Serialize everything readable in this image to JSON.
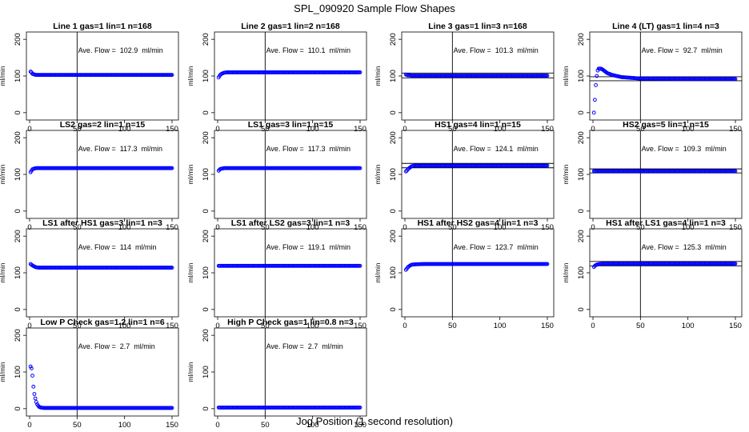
{
  "figure": {
    "title": "SPL_090920  Sample Flow Shapes",
    "xlabel": "Jog Position (1 second resolution)"
  },
  "colors": {
    "points": "#0000ff",
    "axes": "#000000",
    "background": "#ffffff"
  },
  "chart_data": [
    {
      "type": "scatter",
      "title": "Line 1 gas=1 lin=1 n=168",
      "ylabel": "ml/min",
      "annotation": "Ave. Flow =  102.9  ml/min",
      "xlim": [
        0,
        150
      ],
      "ylim": [
        -20,
        220
      ],
      "xticks": [
        0,
        50,
        100,
        150
      ],
      "yticks": [
        0,
        100,
        200
      ],
      "vline": 50,
      "hlines": [],
      "series": [
        {
          "x": [
            1,
            2,
            3,
            5,
            7,
            10,
            20,
            50,
            100,
            150
          ],
          "y": [
            112,
            110,
            106,
            104,
            103,
            103,
            103,
            103,
            103,
            103
          ]
        }
      ]
    },
    {
      "type": "scatter",
      "title": "Line 2 gas=1 lin=2 n=168",
      "ylabel": "ml/min",
      "annotation": "Ave. Flow =  110.1  ml/min",
      "xlim": [
        0,
        150
      ],
      "ylim": [
        -20,
        220
      ],
      "xticks": [
        0,
        50,
        100,
        150
      ],
      "yticks": [
        0,
        100,
        200
      ],
      "vline": 50,
      "hlines": [],
      "series": [
        {
          "x": [
            1,
            2,
            3,
            5,
            7,
            10,
            20,
            50,
            100,
            150
          ],
          "y": [
            96,
            100,
            104,
            107,
            109,
            110,
            110,
            110,
            110,
            110
          ]
        }
      ]
    },
    {
      "type": "scatter",
      "title": "Line 3 gas=1 lin=3 n=168",
      "ylabel": "ml/min",
      "annotation": "Ave. Flow =  101.3  ml/min",
      "xlim": [
        0,
        150
      ],
      "ylim": [
        -20,
        220
      ],
      "xticks": [
        0,
        50,
        100,
        150
      ],
      "yticks": [
        0,
        100,
        200
      ],
      "vline": 50,
      "hlines": [
        95,
        108
      ],
      "series": [
        {
          "x": [
            1,
            2,
            3,
            5,
            7,
            10,
            20,
            50,
            100,
            150
          ],
          "y": [
            104,
            103,
            102,
            102,
            101,
            101,
            101,
            101,
            101,
            101
          ]
        }
      ]
    },
    {
      "type": "scatter",
      "title": "Line 4 (LT) gas=1 lin=4 n=3",
      "ylabel": "ml/min",
      "annotation": "Ave. Flow =  92.7  ml/min",
      "xlim": [
        0,
        150
      ],
      "ylim": [
        -20,
        220
      ],
      "xticks": [
        0,
        50,
        100,
        150
      ],
      "yticks": [
        0,
        100,
        200
      ],
      "vline": 50,
      "hlines": [
        87,
        98
      ],
      "series": [
        {
          "x": [
            1,
            2,
            3,
            4,
            5,
            6,
            8,
            10,
            12,
            15,
            20,
            25,
            30,
            40,
            50,
            100,
            150
          ],
          "y": [
            0,
            35,
            75,
            100,
            115,
            120,
            120,
            118,
            114,
            108,
            103,
            100,
            97,
            95,
            93,
            92,
            92
          ]
        }
      ]
    },
    {
      "type": "scatter",
      "title": "LS2 gas=2 lin=1 n=15",
      "ylabel": "ml/min",
      "annotation": "Ave. Flow =  117.3  ml/min",
      "xlim": [
        0,
        150
      ],
      "ylim": [
        -20,
        220
      ],
      "xticks": [
        0,
        50,
        100,
        150
      ],
      "yticks": [
        0,
        100,
        200
      ],
      "vline": 50,
      "hlines": [],
      "series": [
        {
          "x": [
            1,
            2,
            3,
            5,
            7,
            10,
            20,
            50,
            100,
            150
          ],
          "y": [
            106,
            110,
            114,
            116,
            117,
            117,
            117,
            117,
            117,
            117
          ]
        }
      ]
    },
    {
      "type": "scatter",
      "title": "LS1 gas=3 lin=1 n=15",
      "ylabel": "ml/min",
      "annotation": "Ave. Flow =  117.3  ml/min",
      "xlim": [
        0,
        150
      ],
      "ylim": [
        -20,
        220
      ],
      "xticks": [
        0,
        50,
        100,
        150
      ],
      "yticks": [
        0,
        100,
        200
      ],
      "vline": 50,
      "hlines": [],
      "series": [
        {
          "x": [
            1,
            2,
            3,
            5,
            7,
            10,
            20,
            50,
            100,
            150
          ],
          "y": [
            110,
            113,
            115,
            116,
            117,
            117,
            117,
            117,
            117,
            117
          ]
        }
      ]
    },
    {
      "type": "scatter",
      "title": "HS1 gas=4 lin=1 n=15",
      "ylabel": "ml/min",
      "annotation": "Ave. Flow =  124.1  ml/min",
      "xlim": [
        0,
        150
      ],
      "ylim": [
        -20,
        220
      ],
      "xticks": [
        0,
        50,
        100,
        150
      ],
      "yticks": [
        0,
        100,
        200
      ],
      "vline": 50,
      "hlines": [
        118,
        130
      ],
      "series": [
        {
          "x": [
            1,
            2,
            3,
            5,
            7,
            10,
            20,
            50,
            100,
            150
          ],
          "y": [
            108,
            110,
            114,
            118,
            122,
            124,
            124,
            124,
            124,
            124
          ]
        }
      ]
    },
    {
      "type": "scatter",
      "title": "HS2 gas=5 lin=1 n=15",
      "ylabel": "ml/min",
      "annotation": "Ave. Flow =  109.3  ml/min",
      "xlim": [
        0,
        150
      ],
      "ylim": [
        -20,
        220
      ],
      "xticks": [
        0,
        50,
        100,
        150
      ],
      "yticks": [
        0,
        100,
        200
      ],
      "vline": 50,
      "hlines": [
        104,
        115
      ],
      "series": [
        {
          "x": [
            1,
            2,
            3,
            5,
            7,
            10,
            20,
            50,
            100,
            150
          ],
          "y": [
            109,
            109,
            109,
            109,
            109,
            109,
            109,
            109,
            109,
            109
          ]
        }
      ]
    },
    {
      "type": "scatter",
      "title": "LS1 after HS1 gas=3 lin=1 n=3",
      "ylabel": "ml/min",
      "annotation": "Ave. Flow =  114  ml/min",
      "xlim": [
        0,
        150
      ],
      "ylim": [
        -20,
        220
      ],
      "xticks": [
        0,
        50,
        100,
        150
      ],
      "yticks": [
        0,
        100,
        200
      ],
      "vline": 50,
      "hlines": [],
      "series": [
        {
          "x": [
            1,
            2,
            3,
            5,
            7,
            10,
            20,
            50,
            100,
            150
          ],
          "y": [
            124,
            122,
            120,
            117,
            115,
            114,
            114,
            114,
            114,
            114
          ]
        }
      ]
    },
    {
      "type": "scatter",
      "title": "LS1 after LS2 gas=3 lin=1 n=3",
      "ylabel": "ml/min",
      "annotation": "Ave. Flow =  119.1  ml/min",
      "xlim": [
        0,
        150
      ],
      "ylim": [
        -20,
        220
      ],
      "xticks": [
        0,
        50,
        100,
        150
      ],
      "yticks": [
        0,
        100,
        200
      ],
      "vline": 50,
      "hlines": [],
      "series": [
        {
          "x": [
            1,
            2,
            3,
            5,
            7,
            10,
            20,
            50,
            100,
            150
          ],
          "y": [
            119,
            119,
            119,
            119,
            119,
            119,
            119,
            119,
            119,
            119
          ]
        }
      ]
    },
    {
      "type": "scatter",
      "title": "HS1 after HS2 gas=4 lin=1 n=3",
      "ylabel": "ml/min",
      "annotation": "Ave. Flow =  123.7  ml/min",
      "xlim": [
        0,
        150
      ],
      "ylim": [
        -20,
        220
      ],
      "xticks": [
        0,
        50,
        100,
        150
      ],
      "yticks": [
        0,
        100,
        200
      ],
      "vline": 50,
      "hlines": [],
      "series": [
        {
          "x": [
            1,
            2,
            3,
            5,
            7,
            10,
            20,
            50,
            100,
            150
          ],
          "y": [
            108,
            111,
            115,
            119,
            122,
            123,
            124,
            124,
            124,
            124
          ]
        }
      ]
    },
    {
      "type": "scatter",
      "title": "HS1 after LS1 gas=4 lin=1 n=3",
      "ylabel": "ml/min",
      "annotation": "Ave. Flow =  125.3  ml/min",
      "xlim": [
        0,
        150
      ],
      "ylim": [
        -20,
        220
      ],
      "xticks": [
        0,
        50,
        100,
        150
      ],
      "yticks": [
        0,
        100,
        200
      ],
      "vline": 50,
      "hlines": [
        119,
        131
      ],
      "series": [
        {
          "x": [
            1,
            2,
            3,
            5,
            7,
            10,
            20,
            50,
            100,
            150
          ],
          "y": [
            116,
            119,
            121,
            123,
            124,
            125,
            125,
            125,
            125,
            125
          ]
        }
      ]
    },
    {
      "type": "scatter",
      "title": "Low P Check gas=1.2 lin=1 n=6",
      "ylabel": "ml/min",
      "annotation": "Ave. Flow =  2.7  ml/min",
      "xlim": [
        0,
        150
      ],
      "ylim": [
        -20,
        220
      ],
      "xticks": [
        0,
        50,
        100,
        150
      ],
      "yticks": [
        0,
        100,
        200
      ],
      "vline": 50,
      "hlines": [],
      "series": [
        {
          "x": [
            1,
            2,
            3,
            4,
            5,
            6,
            7,
            8,
            9,
            10,
            12,
            15,
            20,
            50,
            100,
            150
          ],
          "y": [
            115,
            110,
            90,
            60,
            40,
            28,
            18,
            12,
            8,
            5,
            3,
            2,
            2,
            2,
            2,
            2
          ]
        }
      ]
    },
    {
      "type": "scatter",
      "title": "High P Check gas=1 lin=0.8 n=3",
      "ylabel": "ml/min",
      "annotation": "Ave. Flow =  2.7  ml/min",
      "xlim": [
        0,
        150
      ],
      "ylim": [
        -20,
        220
      ],
      "xticks": [
        0,
        50,
        100,
        150
      ],
      "yticks": [
        0,
        100,
        200
      ],
      "vline": 50,
      "hlines": [],
      "series": [
        {
          "x": [
            1,
            2,
            3,
            5,
            7,
            10,
            20,
            50,
            100,
            150
          ],
          "y": [
            3,
            3,
            3,
            3,
            3,
            3,
            3,
            3,
            3,
            3
          ]
        }
      ]
    }
  ]
}
